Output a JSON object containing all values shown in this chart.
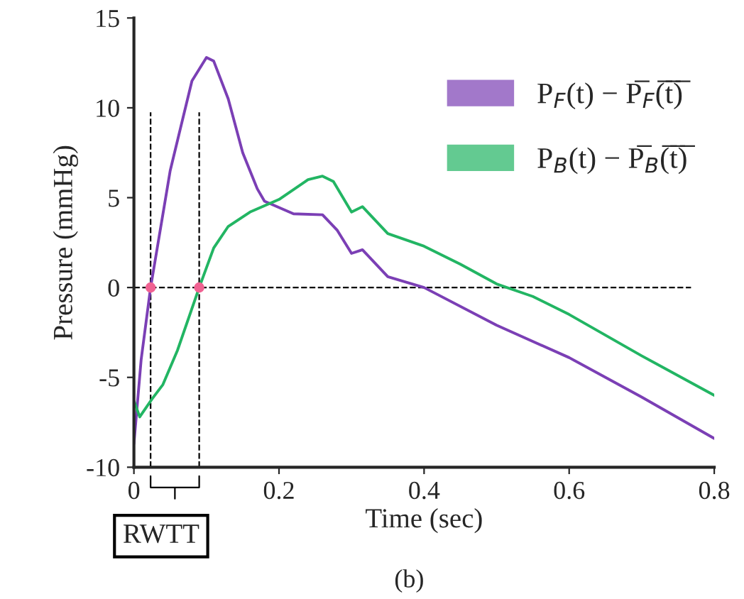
{
  "chart_data": {
    "type": "line",
    "xlabel": "Time (sec)",
    "ylabel": "Pressure (mmHg)",
    "xlim": [
      0,
      0.8
    ],
    "ylim": [
      -10,
      15
    ],
    "xticks": [
      0,
      0.2,
      0.4,
      0.6,
      0.8
    ],
    "yticks": [
      {
        "value": -10,
        "label": "-10"
      },
      {
        "value": -5,
        "label": "-5"
      },
      0,
      5,
      10,
      15
    ],
    "grid": false,
    "legend": "top right",
    "line_style": "solid",
    "series": [
      {
        "name": "P$_{F}$(t) − P̅$_{F}$(̅t̅)̅",
        "color": "#7b3fb5",
        "x": [
          0,
          0.01,
          0.023,
          0.05,
          0.08,
          0.1,
          0.11,
          0.13,
          0.15,
          0.17,
          0.18,
          0.22,
          0.26,
          0.28,
          0.3,
          0.315,
          0.35,
          0.4,
          0.5,
          0.6,
          0.7,
          0.8
        ],
        "values": [
          -8.7,
          -4,
          0,
          6.5,
          11.5,
          12.8,
          12.6,
          10.5,
          7.5,
          5.5,
          4.8,
          4.1,
          4.05,
          3.2,
          1.9,
          2.1,
          0.6,
          0,
          -2.1,
          -3.9,
          -6.1,
          -8.4
        ]
      },
      {
        "name": "P$_{B}$(t) − P̅$_{B}$(̅t̅)̅",
        "color": "#22b563",
        "x": [
          0,
          0.008,
          0.025,
          0.04,
          0.06,
          0.09,
          0.11,
          0.13,
          0.16,
          0.2,
          0.24,
          0.26,
          0.275,
          0.3,
          0.315,
          0.35,
          0.4,
          0.45,
          0.5,
          0.55,
          0.6,
          0.7,
          0.8
        ],
        "values": [
          -6.3,
          -7.2,
          -6.2,
          -5.4,
          -3.5,
          0,
          2.2,
          3.4,
          4.2,
          4.9,
          6,
          6.2,
          5.9,
          4.2,
          4.5,
          3,
          2.3,
          1.3,
          0.2,
          -0.5,
          -1.5,
          -3.8,
          -6
        ]
      },
      {
        "type": "scatter",
        "marker": "circle",
        "color": "#f06292",
        "x": [
          0.023,
          0.09
        ],
        "values": [
          0,
          0
        ]
      }
    ],
    "ref_lines": [
      {
        "axis": "y",
        "value": 0,
        "line_style": "dashed",
        "color": "#000000"
      },
      {
        "axis": "x",
        "value": 0.023,
        "line_style": "dashed",
        "color": "#000000"
      },
      {
        "axis": "x",
        "value": 0.09,
        "line_style": "dashed",
        "color": "#000000"
      }
    ],
    "annotations": [
      "RWTT",
      "(b)"
    ]
  }
}
